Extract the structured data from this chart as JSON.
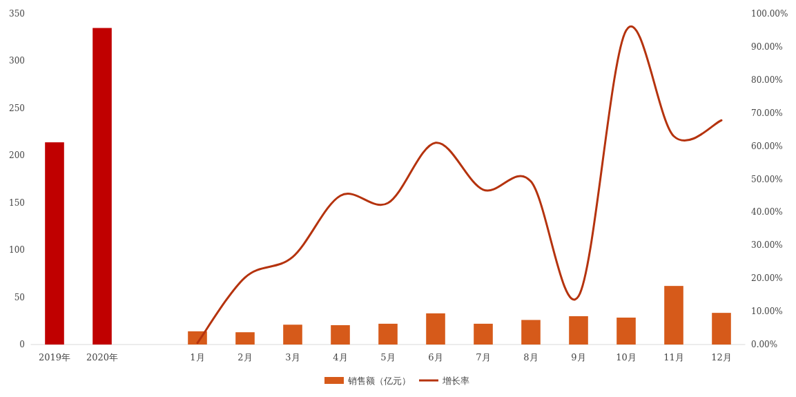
{
  "chart_data": {
    "type": "bar",
    "categories": [
      "2019年",
      "2020年",
      null,
      "1月",
      "2月",
      "3月",
      "4月",
      "5月",
      "6月",
      "7月",
      "8月",
      "9月",
      "10月",
      "11月",
      "12月"
    ],
    "series": [
      {
        "name": "销售额（亿元）",
        "color": "#d65a1a",
        "colors": [
          "#c00000",
          "#c00000",
          null,
          "#d65a1a",
          "#d65a1a",
          "#d65a1a",
          "#d65a1a",
          "#d65a1a",
          "#d65a1a",
          "#d65a1a",
          "#d65a1a",
          "#d65a1a",
          "#d65a1a",
          "#d65a1a",
          "#d65a1a"
        ],
        "values": [
          214,
          335,
          null,
          14,
          13,
          21,
          20.5,
          22,
          33,
          22,
          26,
          30,
          28.5,
          62,
          33.5
        ]
      },
      {
        "name": "增长率",
        "type": "line",
        "axis": "y2",
        "color": "#b5330e",
        "values": [
          null,
          null,
          null,
          0.5,
          20.3,
          26.5,
          45,
          42.8,
          61,
          46.8,
          49.3,
          14.6,
          95,
          63,
          67.8
        ]
      }
    ],
    "ylim": [
      0,
      350
    ],
    "yticks": [
      0,
      50,
      100,
      150,
      200,
      250,
      300,
      350
    ],
    "y2lim": [
      0,
      100
    ],
    "y2ticks": [
      {
        "value": 0,
        "label": "0.00%"
      },
      {
        "value": 10,
        "label": "10.00%"
      },
      {
        "value": 20,
        "label": "20.00%"
      },
      {
        "value": 30,
        "label": "30.00%"
      },
      {
        "value": 40,
        "label": "40.00%"
      },
      {
        "value": 50,
        "label": "50.00%"
      },
      {
        "value": 60,
        "label": "60.00%"
      },
      {
        "value": 70,
        "label": "70.00%"
      },
      {
        "value": 80,
        "label": "80.00%"
      },
      {
        "value": 90,
        "label": "90.00%"
      },
      {
        "value": 100,
        "label": "100.00%"
      }
    ],
    "legend": "bottom"
  }
}
